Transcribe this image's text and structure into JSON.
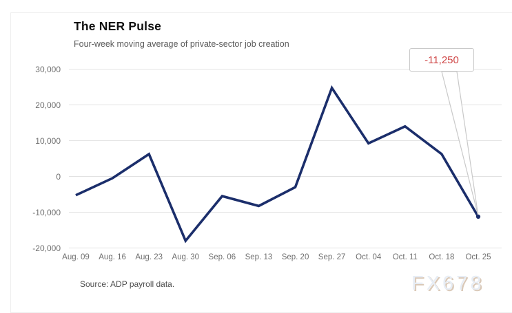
{
  "header": {
    "title": "The NER Pulse",
    "subtitle": "Four-week moving average of private-sector job creation"
  },
  "footer": {
    "source": "Source: ADP payroll data.",
    "watermark": "FX678"
  },
  "annotation": {
    "label": "-11,250",
    "color": "#cf4646",
    "points_to": "Oct. 25"
  },
  "colors": {
    "line": "#1b2e6b",
    "grid": "#e2e2e2",
    "axis_text": "#6f6f6f",
    "annotation_border": "#c9c9c9",
    "card_border": "#efefef"
  },
  "chart_data": {
    "type": "line",
    "title": "The NER Pulse",
    "subtitle": "Four-week moving average of private-sector job creation",
    "xlabel": "",
    "ylabel": "",
    "grid": true,
    "legend": false,
    "ylim": [
      -20000,
      30000
    ],
    "categories": [
      "Aug. 09",
      "Aug. 16",
      "Aug. 23",
      "Aug. 30",
      "Sep. 06",
      "Sep. 13",
      "Sep. 20",
      "Sep. 27",
      "Oct. 04",
      "Oct. 11",
      "Oct. 18",
      "Oct. 25"
    ],
    "values": [
      -5250,
      -500,
      6250,
      -18000,
      -5500,
      -8250,
      -3000,
      24750,
      9250,
      14000,
      6250,
      -11250
    ],
    "yticks": [
      {
        "value": 30000,
        "label": "30,000"
      },
      {
        "value": 20000,
        "label": "20,000"
      },
      {
        "value": 10000,
        "label": "10,000"
      },
      {
        "value": 0,
        "label": "0"
      },
      {
        "value": -10000,
        "label": "-10,000"
      },
      {
        "value": -20000,
        "label": "-20,000"
      }
    ]
  }
}
